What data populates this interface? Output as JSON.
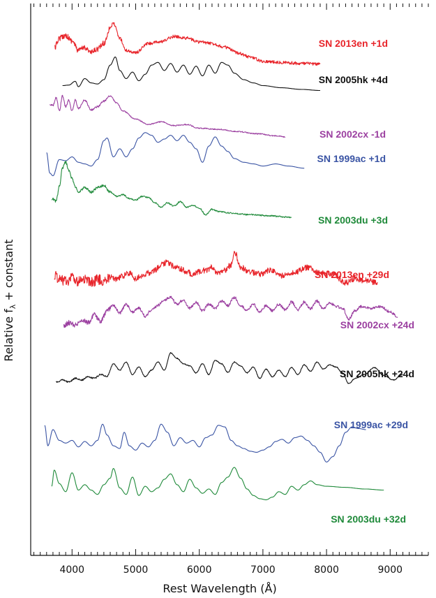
{
  "chart_data": {
    "type": "line",
    "xlabel": "Rest Wavelength  (Å)",
    "ylabel": "Relative f",
    "ylabel_subscript": "λ",
    "ylabel_suffix": " + constant",
    "xlim": [
      3350,
      9600
    ],
    "x_ticks": [
      4000,
      5000,
      6000,
      7000,
      8000,
      9000
    ],
    "x_minor_step": 100,
    "ylim": [
      0,
      1
    ],
    "show_y_tick_labels": false,
    "grid": false,
    "series": [
      {
        "name": "SN 2013en +1d",
        "color": "#e8242a",
        "noise": 0.45,
        "x": [
          3730,
          3800,
          3900,
          4000,
          4100,
          4200,
          4300,
          4400,
          4500,
          4600,
          4650,
          4750,
          4850,
          5000,
          5200,
          5400,
          5600,
          5800,
          6000,
          6200,
          6400,
          6600,
          6800,
          7000,
          7300,
          7600,
          7900
        ],
        "y": [
          0.928,
          0.945,
          0.95,
          0.94,
          0.922,
          0.928,
          0.918,
          0.925,
          0.935,
          0.965,
          0.972,
          0.945,
          0.922,
          0.918,
          0.935,
          0.938,
          0.948,
          0.945,
          0.938,
          0.935,
          0.928,
          0.918,
          0.91,
          0.902,
          0.9,
          0.898,
          0.897
        ]
      },
      {
        "name": "SN 2005hk +4d",
        "color": "#111111",
        "noise": 0,
        "x": [
          3850,
          3950,
          4050,
          4100,
          4200,
          4300,
          4400,
          4500,
          4600,
          4680,
          4750,
          4850,
          4950,
          5050,
          5150,
          5250,
          5350,
          5450,
          5550,
          5650,
          5750,
          5850,
          5950,
          6050,
          6150,
          6250,
          6350,
          6450,
          6550,
          6700,
          6850,
          7000,
          7300,
          7600,
          7900
        ],
        "y": [
          0.857,
          0.858,
          0.865,
          0.855,
          0.87,
          0.862,
          0.86,
          0.868,
          0.895,
          0.91,
          0.885,
          0.87,
          0.882,
          0.866,
          0.878,
          0.895,
          0.9,
          0.885,
          0.898,
          0.882,
          0.895,
          0.878,
          0.893,
          0.875,
          0.895,
          0.88,
          0.9,
          0.895,
          0.88,
          0.868,
          0.862,
          0.857,
          0.853,
          0.85,
          0.848
        ]
      },
      {
        "name": "SN 2002cx -1d",
        "color": "#9b3fa0",
        "noise": 0.15,
        "x": [
          3650,
          3700,
          3750,
          3800,
          3850,
          3900,
          3950,
          4000,
          4050,
          4100,
          4200,
          4300,
          4400,
          4500,
          4600,
          4700,
          4800,
          5000,
          5200,
          5400,
          5600,
          5800,
          6000,
          6300,
          6600,
          6900,
          7200,
          7350
        ],
        "y": [
          0.822,
          0.82,
          0.835,
          0.81,
          0.838,
          0.818,
          0.83,
          0.81,
          0.83,
          0.815,
          0.83,
          0.812,
          0.818,
          0.828,
          0.838,
          0.825,
          0.81,
          0.795,
          0.785,
          0.79,
          0.783,
          0.785,
          0.778,
          0.776,
          0.772,
          0.768,
          0.764,
          0.762
        ]
      },
      {
        "name": "SN 1999ac +1d",
        "color": "#3a54a4",
        "noise": 0,
        "x": [
          3600,
          3650,
          3700,
          3800,
          3900,
          4000,
          4100,
          4200,
          4300,
          4400,
          4500,
          4550,
          4650,
          4750,
          4850,
          4950,
          5050,
          5150,
          5250,
          5350,
          5450,
          5550,
          5650,
          5750,
          5850,
          5950,
          6050,
          6150,
          6250,
          6350,
          6450,
          6550,
          6700,
          6850,
          7000,
          7200,
          7400,
          7650
        ],
        "y": [
          0.733,
          0.695,
          0.69,
          0.72,
          0.718,
          0.725,
          0.715,
          0.712,
          0.708,
          0.72,
          0.755,
          0.76,
          0.725,
          0.74,
          0.725,
          0.74,
          0.76,
          0.77,
          0.765,
          0.752,
          0.758,
          0.765,
          0.755,
          0.765,
          0.752,
          0.74,
          0.715,
          0.745,
          0.762,
          0.745,
          0.735,
          0.722,
          0.715,
          0.712,
          0.708,
          0.712,
          0.708,
          0.704
        ]
      },
      {
        "name": "SN 2003du +3d",
        "color": "#1f8a3a",
        "noise": 0.2,
        "x": [
          3680,
          3750,
          3800,
          3850,
          3900,
          3950,
          4000,
          4050,
          4100,
          4200,
          4300,
          4400,
          4500,
          4600,
          4700,
          4800,
          4900,
          5000,
          5100,
          5200,
          5300,
          5400,
          5500,
          5600,
          5700,
          5800,
          5900,
          6000,
          6100,
          6200,
          6300,
          6500,
          6800,
          7100,
          7450
        ],
        "y": [
          0.648,
          0.643,
          0.67,
          0.705,
          0.715,
          0.7,
          0.685,
          0.67,
          0.66,
          0.668,
          0.66,
          0.668,
          0.672,
          0.66,
          0.652,
          0.655,
          0.648,
          0.645,
          0.652,
          0.65,
          0.64,
          0.632,
          0.64,
          0.634,
          0.642,
          0.632,
          0.635,
          0.63,
          0.618,
          0.628,
          0.624,
          0.621,
          0.618,
          0.616,
          0.613
        ]
      },
      {
        "name": "SN 2013en +29d",
        "color": "#e8242a",
        "noise": 0.85,
        "x": [
          3720,
          3800,
          3900,
          4000,
          4100,
          4200,
          4300,
          4400,
          4500,
          4600,
          4700,
          4800,
          4900,
          5000,
          5100,
          5200,
          5300,
          5400,
          5500,
          5600,
          5700,
          5800,
          5900,
          6000,
          6100,
          6200,
          6300,
          6400,
          6500,
          6560,
          6650,
          6800,
          6950,
          7100,
          7300,
          7500,
          7700,
          7900,
          8100,
          8300,
          8450,
          8600,
          8800
        ],
        "y": [
          0.505,
          0.5,
          0.495,
          0.5,
          0.495,
          0.498,
          0.492,
          0.498,
          0.495,
          0.502,
          0.498,
          0.505,
          0.51,
          0.5,
          0.505,
          0.51,
          0.515,
          0.525,
          0.53,
          0.522,
          0.518,
          0.512,
          0.508,
          0.512,
          0.515,
          0.52,
          0.51,
          0.515,
          0.525,
          0.548,
          0.52,
          0.512,
          0.508,
          0.515,
          0.505,
          0.512,
          0.52,
          0.51,
          0.508,
          0.492,
          0.5,
          0.496,
          0.493
        ]
      },
      {
        "name": "SN 2002cx +24d",
        "color": "#9b3fa0",
        "noise": 0.4,
        "x": [
          3870,
          3950,
          4050,
          4150,
          4250,
          4350,
          4450,
          4550,
          4650,
          4750,
          4850,
          4950,
          5050,
          5150,
          5250,
          5350,
          5450,
          5550,
          5650,
          5750,
          5850,
          5950,
          6050,
          6150,
          6250,
          6350,
          6450,
          6550,
          6650,
          6750,
          6850,
          6950,
          7050,
          7150,
          7250,
          7350,
          7450,
          7550,
          7650,
          7750,
          7850,
          7950,
          8050,
          8150,
          8250,
          8350,
          8450,
          8550,
          8700,
          8850,
          9000,
          9120
        ],
        "y": [
          0.412,
          0.418,
          0.414,
          0.424,
          0.418,
          0.432,
          0.42,
          0.44,
          0.45,
          0.436,
          0.452,
          0.438,
          0.445,
          0.43,
          0.442,
          0.45,
          0.46,
          0.466,
          0.452,
          0.46,
          0.445,
          0.456,
          0.44,
          0.452,
          0.445,
          0.458,
          0.45,
          0.465,
          0.45,
          0.44,
          0.452,
          0.438,
          0.45,
          0.44,
          0.452,
          0.442,
          0.456,
          0.442,
          0.456,
          0.444,
          0.458,
          0.444,
          0.455,
          0.448,
          0.445,
          0.425,
          0.44,
          0.448,
          0.445,
          0.448,
          0.438,
          0.428
        ]
      },
      {
        "name": "SN 2005hk +24d",
        "color": "#111111",
        "noise": 0.12,
        "x": [
          3750,
          3850,
          3950,
          4050,
          4150,
          4250,
          4350,
          4450,
          4550,
          4650,
          4750,
          4850,
          4950,
          5050,
          5150,
          5250,
          5350,
          5450,
          5550,
          5650,
          5750,
          5850,
          5950,
          6050,
          6150,
          6250,
          6350,
          6450,
          6550,
          6650,
          6750,
          6850,
          6950,
          7050,
          7150,
          7250,
          7350,
          7450,
          7550,
          7650,
          7750,
          7850,
          7950,
          8050,
          8150,
          8250,
          8350,
          8450,
          8600,
          8750,
          8900,
          9050,
          9200
        ],
        "y": [
          0.308,
          0.312,
          0.308,
          0.315,
          0.312,
          0.318,
          0.315,
          0.322,
          0.318,
          0.342,
          0.33,
          0.345,
          0.322,
          0.336,
          0.318,
          0.33,
          0.345,
          0.33,
          0.362,
          0.352,
          0.342,
          0.338,
          0.325,
          0.342,
          0.322,
          0.348,
          0.342,
          0.326,
          0.345,
          0.338,
          0.325,
          0.336,
          0.315,
          0.332,
          0.318,
          0.33,
          0.318,
          0.335,
          0.322,
          0.34,
          0.328,
          0.345,
          0.332,
          0.34,
          0.336,
          0.325,
          0.305,
          0.315,
          0.322,
          0.335,
          0.32,
          0.312,
          0.322
        ]
      },
      {
        "name": "SN 1999ac +29d",
        "color": "#3a54a4",
        "noise": 0,
        "x": [
          3570,
          3620,
          3700,
          3800,
          3900,
          4000,
          4100,
          4200,
          4300,
          4400,
          4480,
          4550,
          4650,
          4750,
          4820,
          4900,
          5000,
          5100,
          5200,
          5300,
          5400,
          5500,
          5600,
          5700,
          5800,
          5900,
          6000,
          6100,
          6200,
          6300,
          6400,
          6500,
          6600,
          6700,
          6800,
          6900,
          7000,
          7100,
          7200,
          7300,
          7400,
          7500,
          7600,
          7700,
          7800,
          7900,
          8000,
          8100,
          8200,
          8300,
          8400,
          8500,
          8620
        ],
        "y": [
          0.228,
          0.19,
          0.22,
          0.2,
          0.195,
          0.2,
          0.188,
          0.198,
          0.19,
          0.2,
          0.23,
          0.21,
          0.19,
          0.185,
          0.215,
          0.19,
          0.182,
          0.195,
          0.188,
          0.2,
          0.23,
          0.215,
          0.19,
          0.205,
          0.195,
          0.2,
          0.188,
          0.205,
          0.21,
          0.228,
          0.225,
          0.2,
          0.19,
          0.185,
          0.18,
          0.178,
          0.182,
          0.188,
          0.198,
          0.202,
          0.195,
          0.205,
          0.208,
          0.2,
          0.19,
          0.178,
          0.16,
          0.17,
          0.19,
          0.215,
          0.225,
          0.222,
          0.22
        ]
      },
      {
        "name": "SN 2003du +32d",
        "color": "#1f8a3a",
        "noise": 0,
        "x": [
          3680,
          3720,
          3800,
          3900,
          4000,
          4100,
          4200,
          4300,
          4400,
          4500,
          4600,
          4650,
          4750,
          4850,
          4950,
          5050,
          5150,
          5250,
          5350,
          5450,
          5550,
          5650,
          5750,
          5850,
          5950,
          6050,
          6150,
          6250,
          6350,
          6450,
          6550,
          6650,
          6750,
          6850,
          6950,
          7050,
          7150,
          7250,
          7350,
          7450,
          7550,
          7650,
          7750,
          7850,
          8000,
          8300,
          8600,
          8900
        ],
        "y": [
          0.115,
          0.145,
          0.12,
          0.105,
          0.14,
          0.108,
          0.118,
          0.108,
          0.1,
          0.118,
          0.13,
          0.148,
          0.112,
          0.1,
          0.132,
          0.098,
          0.115,
          0.105,
          0.112,
          0.128,
          0.138,
          0.118,
          0.105,
          0.128,
          0.112,
          0.102,
          0.11,
          0.1,
          0.122,
          0.132,
          0.15,
          0.13,
          0.11,
          0.098,
          0.092,
          0.09,
          0.095,
          0.105,
          0.1,
          0.115,
          0.108,
          0.118,
          0.125,
          0.118,
          0.115,
          0.113,
          0.11,
          0.108
        ]
      }
    ]
  }
}
